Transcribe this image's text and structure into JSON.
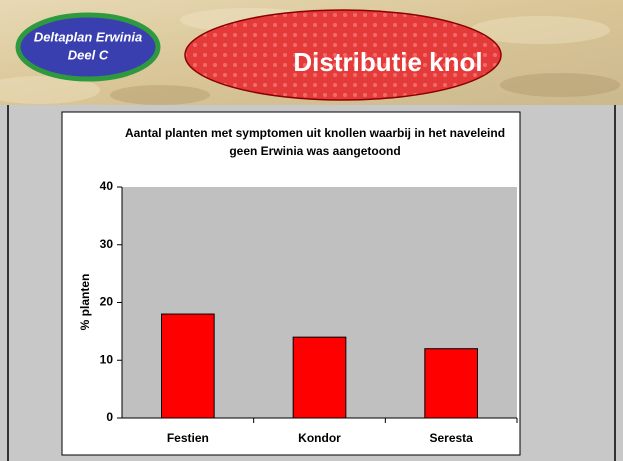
{
  "header": {
    "badge": [
      "Deltaplan Erwinia",
      "Deel C"
    ],
    "title": "Distributie knol"
  },
  "chart_data": {
    "type": "bar",
    "title": "Aantal planten met symptomen uit knollen waarbij in het naveleind geen Erwinia was aangetoond",
    "ylabel": "% planten",
    "categories": [
      "Festien",
      "Kondor",
      "Seresta"
    ],
    "values": [
      18,
      14,
      12
    ],
    "color": "#ff0000",
    "ylim": [
      0,
      40
    ],
    "yticks": [
      0,
      10,
      20,
      30,
      40
    ],
    "grid": false
  }
}
